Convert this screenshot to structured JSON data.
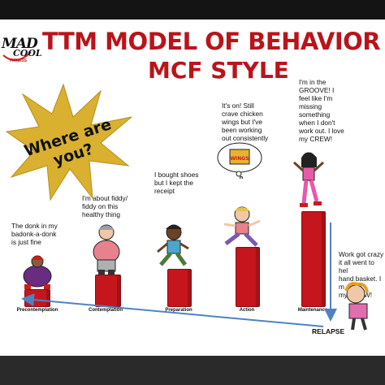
{
  "title": "TTM MODEL OF BEHAVIOR CHANG",
  "subtitle": "MCF STYLE",
  "logo": {
    "main": "MAD",
    "second": "COOL",
    "tag": "FITNESS"
  },
  "burst": {
    "line1": "Where are",
    "line2": "you?"
  },
  "stages": [
    {
      "label": "Precontemplation",
      "caption": [
        "The donk in my",
        "badonk-a-donk",
        "is just fine"
      ]
    },
    {
      "label": "Contemplation",
      "caption": [
        "I'm about fiddy/",
        "fiddy on this",
        "healthy thing"
      ]
    },
    {
      "label": "Preparation",
      "caption": [
        "I bought shoes",
        "but I kept the",
        "receipt"
      ]
    },
    {
      "label": "Action",
      "caption": [
        "It's on! Still",
        "crave chicken",
        "wings but I've",
        "been working",
        "out consistently"
      ]
    },
    {
      "label": "Maintenance",
      "caption": [
        "I'm in the",
        "GROOVE! I",
        "feel like I'm",
        "missing",
        "something",
        "when I don't",
        "work out. I love",
        "my CREW!"
      ]
    }
  ],
  "wings_label": "WINGS",
  "relapse": {
    "caption": [
      "Work got crazy",
      "it all went to hel",
      "hand basket. I m",
      "my CREW!"
    ],
    "label": "RELAPSE"
  },
  "colors": {
    "accent": "#b9141a",
    "pillar": "#c4161c",
    "burst": "#d9b030",
    "arrow": "#4f82c4"
  }
}
